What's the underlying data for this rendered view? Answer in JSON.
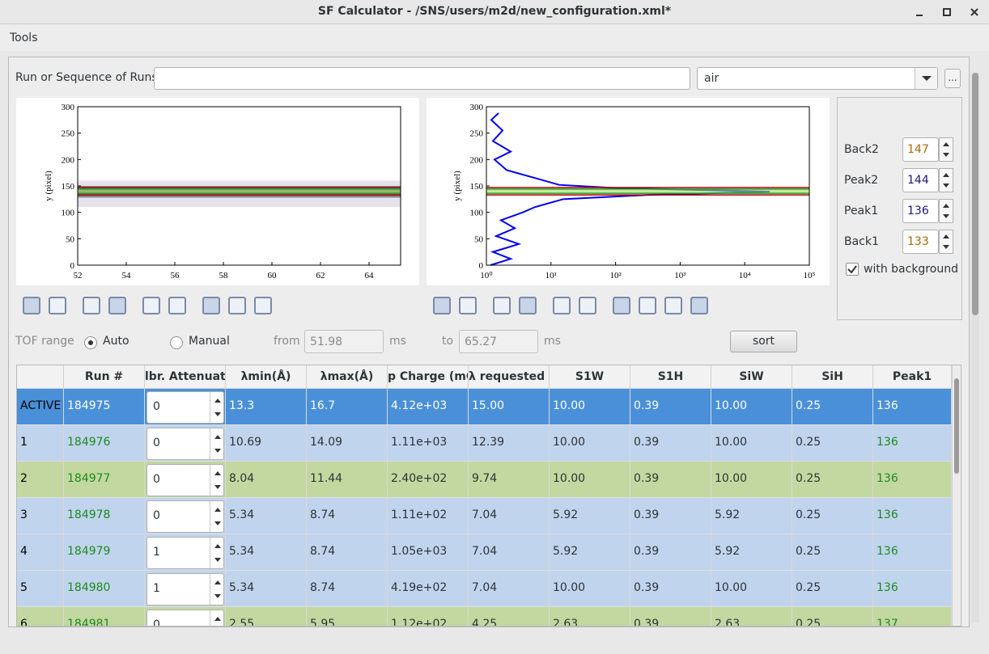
{
  "window": {
    "title": "SF Calculator - /SNS/users/m2d/new_configuration.xml*"
  },
  "menu": {
    "items": [
      "Tools"
    ]
  },
  "run_selector": {
    "label": "Run or Sequence of Runs:",
    "sample": "air",
    "browse": "..."
  },
  "plots": [
    {
      "ylabel": "y (pixel)",
      "xscale": "linear",
      "xlim": [
        52,
        65.3
      ],
      "ylim": [
        0,
        300
      ],
      "xticks": [
        52,
        54,
        56,
        58,
        60,
        62,
        64
      ],
      "yticks": [
        0,
        50,
        100,
        150,
        200,
        250,
        300
      ]
    },
    {
      "ylabel": "y (pixel)",
      "xscale": "log",
      "xlim": [
        1,
        100000
      ],
      "ylim": [
        0,
        300
      ],
      "xticks": [
        {
          "value": 1,
          "label": "10⁰"
        },
        {
          "value": 10,
          "label": "10¹"
        },
        {
          "value": 100,
          "label": "10²"
        },
        {
          "value": 1000,
          "label": "10³"
        },
        {
          "value": 10000,
          "label": "10⁴"
        },
        {
          "value": 100000,
          "label": "10⁵"
        }
      ],
      "yticks": [
        0,
        50,
        100,
        150,
        200,
        250,
        300
      ]
    }
  ],
  "peaks": {
    "items": [
      {
        "label": "Back2",
        "value": 147,
        "color": "#a86a08",
        "line": "#b00000"
      },
      {
        "label": "Peak2",
        "value": 144,
        "color": "#1a1a7a",
        "line": "#2a9a2a"
      },
      {
        "label": "Peak1",
        "value": 136,
        "color": "#1a1a7a",
        "line": "#2a9a2a"
      },
      {
        "label": "Back1",
        "value": 133,
        "color": "#a86a08",
        "line": "#b00000"
      }
    ],
    "with_background": {
      "label": "with background",
      "checked": true
    }
  },
  "tof": {
    "label": "TOF range",
    "options": [
      "Auto",
      "Manual"
    ],
    "selected": 0,
    "from_label": "from",
    "from": "51.98",
    "from_unit": "ms",
    "to_label": "to",
    "to": "65.27",
    "to_unit": "ms",
    "sort": "sort"
  },
  "table": {
    "headers": [
      "Run #",
      "lbr. Attenuato",
      "λmin(Å)",
      "λmax(Å)",
      "p Charge (mC)",
      "λ requested (Å",
      "S1W",
      "S1H",
      "SiW",
      "SiH",
      "Peak1"
    ],
    "rows": [
      [
        "ACTIVE",
        "184975",
        "0",
        "13.3",
        "16.7",
        "4.12e+03",
        "15.00",
        "10.00",
        "0.39",
        "10.00",
        "0.25",
        "136"
      ],
      [
        "1",
        "184976",
        "0",
        "10.69",
        "14.09",
        "1.11e+03",
        "12.39",
        "10.00",
        "0.39",
        "10.00",
        "0.25",
        "136"
      ],
      [
        "2",
        "184977",
        "0",
        "8.04",
        "11.44",
        "2.40e+02",
        "9.74",
        "10.00",
        "0.39",
        "10.00",
        "0.25",
        "136"
      ],
      [
        "3",
        "184978",
        "0",
        "5.34",
        "8.74",
        "1.11e+02",
        "7.04",
        "5.92",
        "0.39",
        "5.92",
        "0.25",
        "136"
      ],
      [
        "4",
        "184979",
        "1",
        "5.34",
        "8.74",
        "1.05e+03",
        "7.04",
        "5.92",
        "0.39",
        "5.92",
        "0.25",
        "136"
      ],
      [
        "5",
        "184980",
        "1",
        "5.34",
        "8.74",
        "4.19e+02",
        "7.04",
        "10.00",
        "0.39",
        "10.00",
        "0.25",
        "136"
      ],
      [
        "6",
        "184981",
        "0",
        "2.55",
        "5.95",
        "1.12e+02",
        "4.25",
        "2.63",
        "0.39",
        "2.63",
        "0.25",
        "137"
      ]
    ],
    "row_colors": [
      "#4a90d9",
      "#c0d4ee",
      "#c2d8a0",
      "#c0d4ee",
      "#c0d4ee",
      "#c0d4ee",
      "#c2d8a0"
    ]
  }
}
